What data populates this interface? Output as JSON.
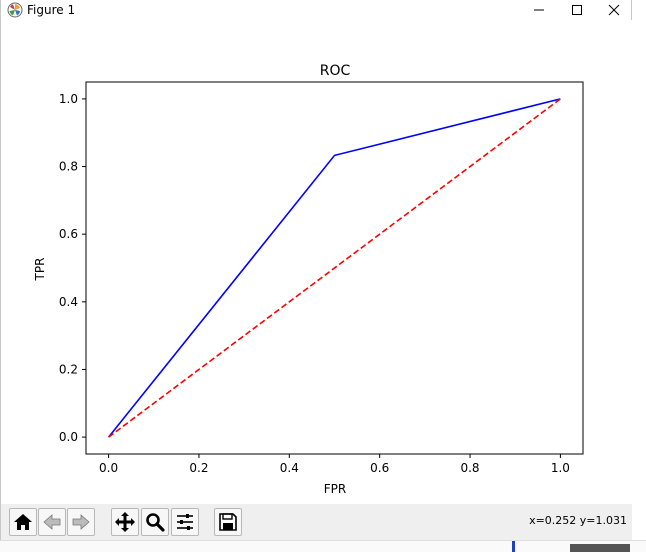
{
  "window": {
    "title": "Figure 1"
  },
  "toolbar": {
    "coords_text": "x=0.252 y=1.031"
  },
  "chart_data": {
    "type": "line",
    "title": "ROC",
    "xlabel": "FPR",
    "ylabel": "TPR",
    "xlim": [
      -0.05,
      1.05
    ],
    "ylim": [
      -0.05,
      1.05
    ],
    "xticks": [
      "0.0",
      "0.2",
      "0.4",
      "0.6",
      "0.8",
      "1.0"
    ],
    "yticks": [
      "0.0",
      "0.2",
      "0.4",
      "0.6",
      "0.8",
      "1.0"
    ],
    "grid": false,
    "series": [
      {
        "x": [
          0.0,
          0.5,
          1.0
        ],
        "y": [
          0.0,
          0.833,
          1.0
        ],
        "color": "#0000ff",
        "style": "solid"
      },
      {
        "x": [
          0.0,
          1.0
        ],
        "y": [
          0.0,
          1.0
        ],
        "color": "#ff0000",
        "style": "dashed"
      }
    ]
  }
}
